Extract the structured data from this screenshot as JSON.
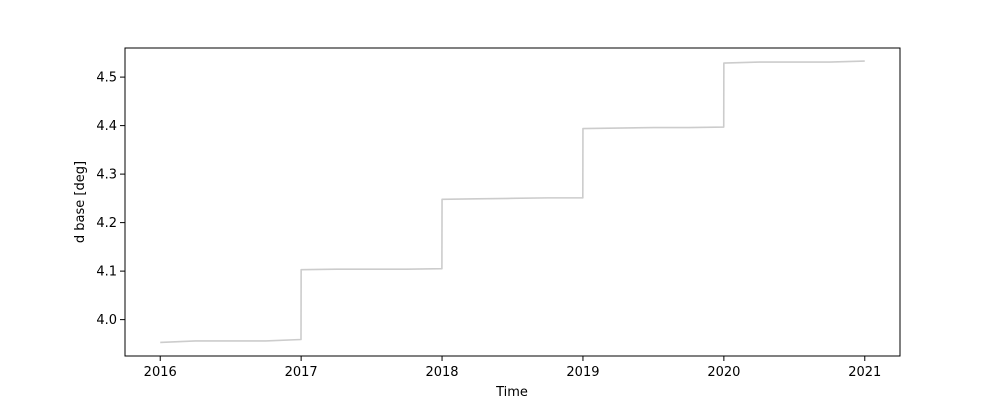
{
  "chart_data": {
    "type": "line",
    "xlabel": "Time",
    "ylabel": "d base [deg]",
    "xlim": [
      2015.75,
      2021.25
    ],
    "ylim": [
      3.925,
      4.56
    ],
    "x_ticks": [
      2016,
      2017,
      2018,
      2019,
      2020,
      2021
    ],
    "x_tick_labels": [
      "2016",
      "2017",
      "2018",
      "2019",
      "2020",
      "2021"
    ],
    "y_ticks": [
      4.0,
      4.1,
      4.2,
      4.3,
      4.4,
      4.5
    ],
    "y_tick_labels": [
      "4.0",
      "4.1",
      "4.2",
      "4.3",
      "4.4",
      "4.5"
    ],
    "grid": false,
    "legend": "none",
    "series": [
      {
        "color": "#cccccc",
        "x": [
          2016.0,
          2016.25,
          2016.5,
          2016.75,
          2016.999,
          2017.0,
          2017.25,
          2017.5,
          2017.75,
          2017.999,
          2018.0,
          2018.25,
          2018.5,
          2018.75,
          2018.999,
          2019.0,
          2019.25,
          2019.5,
          2019.75,
          2019.999,
          2020.0,
          2020.25,
          2020.5,
          2020.75,
          2021.0
        ],
        "y": [
          3.953,
          3.956,
          3.956,
          3.956,
          3.959,
          4.103,
          4.104,
          4.104,
          4.104,
          4.105,
          4.248,
          4.249,
          4.25,
          4.251,
          4.251,
          4.394,
          4.395,
          4.396,
          4.396,
          4.397,
          4.529,
          4.531,
          4.531,
          4.531,
          4.533
        ]
      }
    ]
  }
}
